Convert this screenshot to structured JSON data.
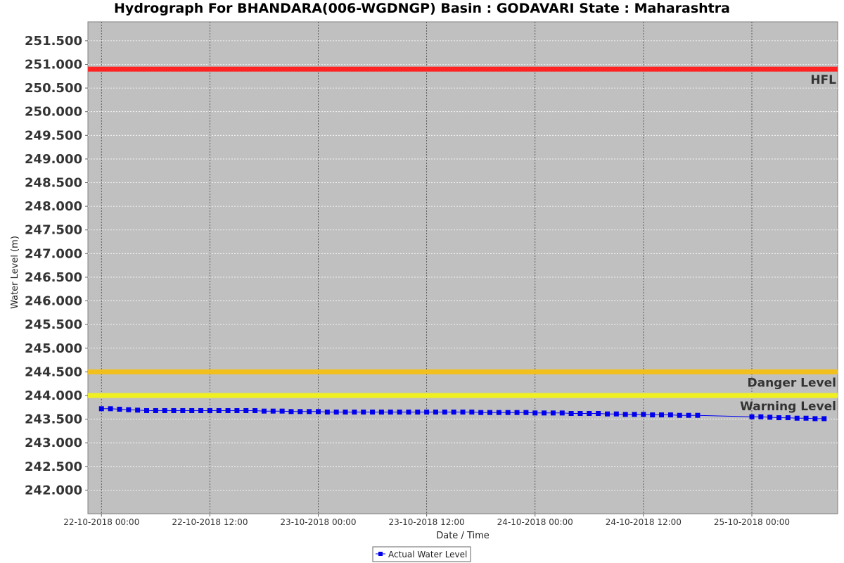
{
  "chart_data": {
    "type": "line",
    "title": "Hydrograph For BHANDARA(006-WGDNGP) Basin : GODAVARI State : Maharashtra",
    "xlabel": "Date / Time",
    "ylabel": "Water Level (m)",
    "ylim": [
      241.5,
      251.9
    ],
    "y_ticks": [
      "242.000",
      "242.500",
      "243.000",
      "243.500",
      "244.000",
      "244.500",
      "245.000",
      "245.500",
      "246.000",
      "246.500",
      "247.000",
      "247.500",
      "248.000",
      "248.500",
      "249.000",
      "249.500",
      "250.000",
      "250.500",
      "251.000",
      "251.500"
    ],
    "x_ticks": [
      "22-10-2018 00:00",
      "22-10-2018 12:00",
      "23-10-2018 00:00",
      "23-10-2018 12:00",
      "24-10-2018 00:00",
      "24-10-2018 12:00",
      "25-10-2018 00:00"
    ],
    "x_range_hours": [
      -1.5,
      81.5
    ],
    "x_unit": "hours from 22-10-2018 00:00",
    "grid": true,
    "legend_position": "bottom-center",
    "reference_lines": [
      {
        "name": "HFL",
        "value": 250.9,
        "color": "#ff2222"
      },
      {
        "name": "Danger Level",
        "value": 244.5,
        "color": "#f2c01c"
      },
      {
        "name": "Warning Level",
        "value": 244.0,
        "color": "#f0f021"
      }
    ],
    "series": [
      {
        "name": "Actual Water Level",
        "color": "#0000ee",
        "x": [
          0,
          1,
          2,
          3,
          4,
          5,
          6,
          7,
          8,
          9,
          10,
          11,
          12,
          13,
          14,
          15,
          16,
          17,
          18,
          19,
          20,
          21,
          22,
          23,
          24,
          25,
          26,
          27,
          28,
          29,
          30,
          31,
          32,
          33,
          34,
          35,
          36,
          37,
          38,
          39,
          40,
          41,
          42,
          43,
          44,
          45,
          46,
          47,
          48,
          49,
          50,
          51,
          52,
          53,
          54,
          55,
          56,
          57,
          58,
          59,
          60,
          61,
          62,
          63,
          64,
          65,
          66,
          72,
          73,
          74,
          75,
          76,
          77,
          78,
          79,
          80
        ],
        "y": [
          243.72,
          243.72,
          243.71,
          243.7,
          243.69,
          243.68,
          243.68,
          243.68,
          243.68,
          243.68,
          243.68,
          243.68,
          243.68,
          243.68,
          243.68,
          243.68,
          243.68,
          243.68,
          243.67,
          243.67,
          243.67,
          243.66,
          243.66,
          243.66,
          243.66,
          243.65,
          243.65,
          243.65,
          243.65,
          243.65,
          243.65,
          243.65,
          243.65,
          243.65,
          243.65,
          243.65,
          243.65,
          243.65,
          243.65,
          243.65,
          243.65,
          243.65,
          243.64,
          243.64,
          243.64,
          243.64,
          243.64,
          243.64,
          243.63,
          243.63,
          243.63,
          243.63,
          243.62,
          243.62,
          243.62,
          243.62,
          243.61,
          243.61,
          243.6,
          243.6,
          243.6,
          243.59,
          243.59,
          243.59,
          243.58,
          243.58,
          243.58,
          243.55,
          243.55,
          243.54,
          243.53,
          243.53,
          243.52,
          243.52,
          243.51,
          243.51
        ]
      }
    ]
  }
}
